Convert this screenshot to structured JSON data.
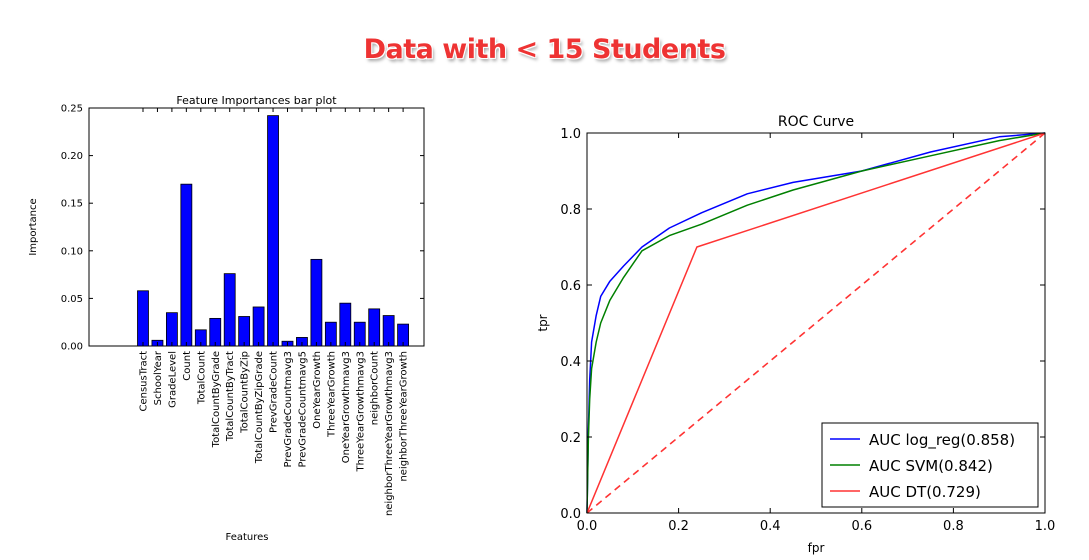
{
  "headline": "Data with < 15 Students",
  "chart_data": [
    {
      "type": "bar",
      "title": "Feature Importances bar plot",
      "xlabel": "Features",
      "ylabel": "Importance",
      "ylim": [
        0,
        0.25
      ],
      "yticks": [
        "0.00",
        "0.05",
        "0.10",
        "0.15",
        "0.20",
        "0.25"
      ],
      "grid": false,
      "color": "#0000ff",
      "categories": [
        "CensusTract",
        "SchoolYear",
        "GradeLevel",
        "Count",
        "TotalCount",
        "TotalCountByGrade",
        "TotalCountByTract",
        "TotalCountByZip",
        "TotalCountByZipGrade",
        "PrevGradeCount",
        "PrevGradeCountmavg3",
        "PrevGradeCountmavg5",
        "OneYearGrowth",
        "ThreeYearGrowth",
        "OneYearGrowthmavg3",
        "ThreeYearGrowthmavg3",
        "neighborCount",
        "neighborThreeYearGrowthmavg3",
        "neighborThreeYearGrowth"
      ],
      "values": [
        0.058,
        0.006,
        0.035,
        0.17,
        0.017,
        0.029,
        0.076,
        0.031,
        0.041,
        0.242,
        0.005,
        0.009,
        0.091,
        0.025,
        0.045,
        0.025,
        0.039,
        0.032,
        0.023
      ]
    },
    {
      "type": "line",
      "title": "ROC Curve",
      "xlabel": "fpr",
      "ylabel": "tpr",
      "xlim": [
        0,
        1
      ],
      "ylim": [
        0,
        1
      ],
      "xticks": [
        "0.0",
        "0.2",
        "0.4",
        "0.6",
        "0.8",
        "1.0"
      ],
      "yticks": [
        "0.0",
        "0.2",
        "0.4",
        "0.6",
        "0.8",
        "1.0"
      ],
      "grid": false,
      "legend_position": "bottom-right",
      "series": [
        {
          "name": "AUC log_reg(0.858)",
          "color": "#0000ff",
          "x": [
            0,
            0.003,
            0.006,
            0.01,
            0.02,
            0.03,
            0.05,
            0.08,
            0.12,
            0.18,
            0.25,
            0.35,
            0.45,
            0.6,
            0.75,
            0.9,
            1.0
          ],
          "y": [
            0,
            0.22,
            0.35,
            0.45,
            0.52,
            0.57,
            0.61,
            0.65,
            0.7,
            0.75,
            0.79,
            0.84,
            0.87,
            0.9,
            0.95,
            0.99,
            1.0
          ]
        },
        {
          "name": "AUC SVM(0.842)",
          "color": "#008000",
          "x": [
            0,
            0.003,
            0.006,
            0.01,
            0.02,
            0.03,
            0.05,
            0.08,
            0.12,
            0.18,
            0.25,
            0.35,
            0.45,
            0.6,
            0.75,
            0.9,
            1.0
          ],
          "y": [
            0,
            0.2,
            0.3,
            0.38,
            0.45,
            0.5,
            0.56,
            0.62,
            0.69,
            0.73,
            0.76,
            0.81,
            0.85,
            0.9,
            0.94,
            0.98,
            1.0
          ]
        },
        {
          "name": "AUC DT(0.729)",
          "color": "#ff3333",
          "x": [
            0,
            0.24,
            1.0
          ],
          "y": [
            0,
            0.7,
            1.0
          ]
        }
      ],
      "diagonal": {
        "x": [
          0,
          1
        ],
        "y": [
          0,
          1
        ],
        "style": "dashed",
        "color": "#ff3333"
      }
    }
  ]
}
